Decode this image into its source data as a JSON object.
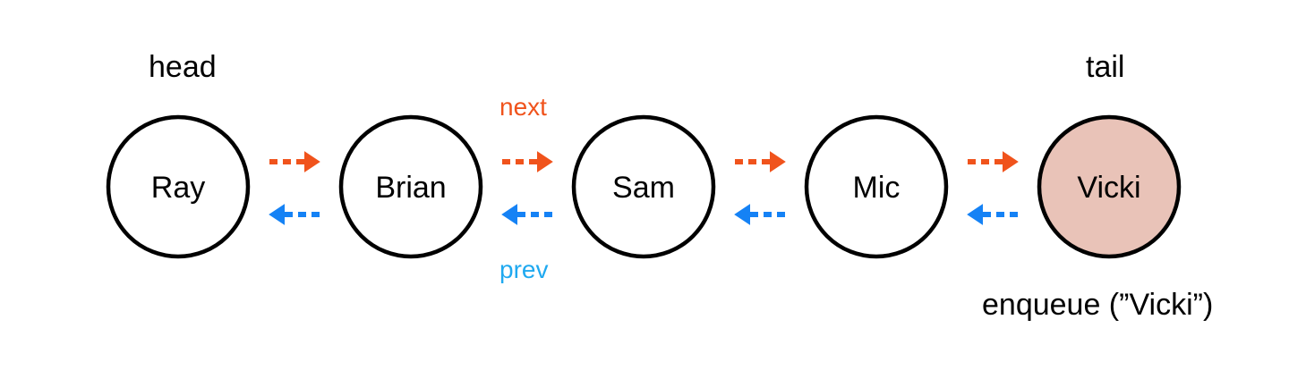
{
  "labels": {
    "head": "head",
    "tail": "tail",
    "next": "next",
    "prev": "prev",
    "operation": "enqueue (”Vicki”)"
  },
  "nodes": [
    {
      "name": "Ray",
      "highlighted": false
    },
    {
      "name": "Brian",
      "highlighted": false
    },
    {
      "name": "Sam",
      "highlighted": false
    },
    {
      "name": "Mic",
      "highlighted": false
    },
    {
      "name": "Vicki",
      "highlighted": true
    }
  ],
  "colors": {
    "next_arrow": "#f0531c",
    "prev_arrow": "#1582f5",
    "prev_label": "#1fa9f0",
    "node_fill": "#ffffff",
    "highlight_fill": "#e9c3b8",
    "node_stroke": "#000000"
  }
}
